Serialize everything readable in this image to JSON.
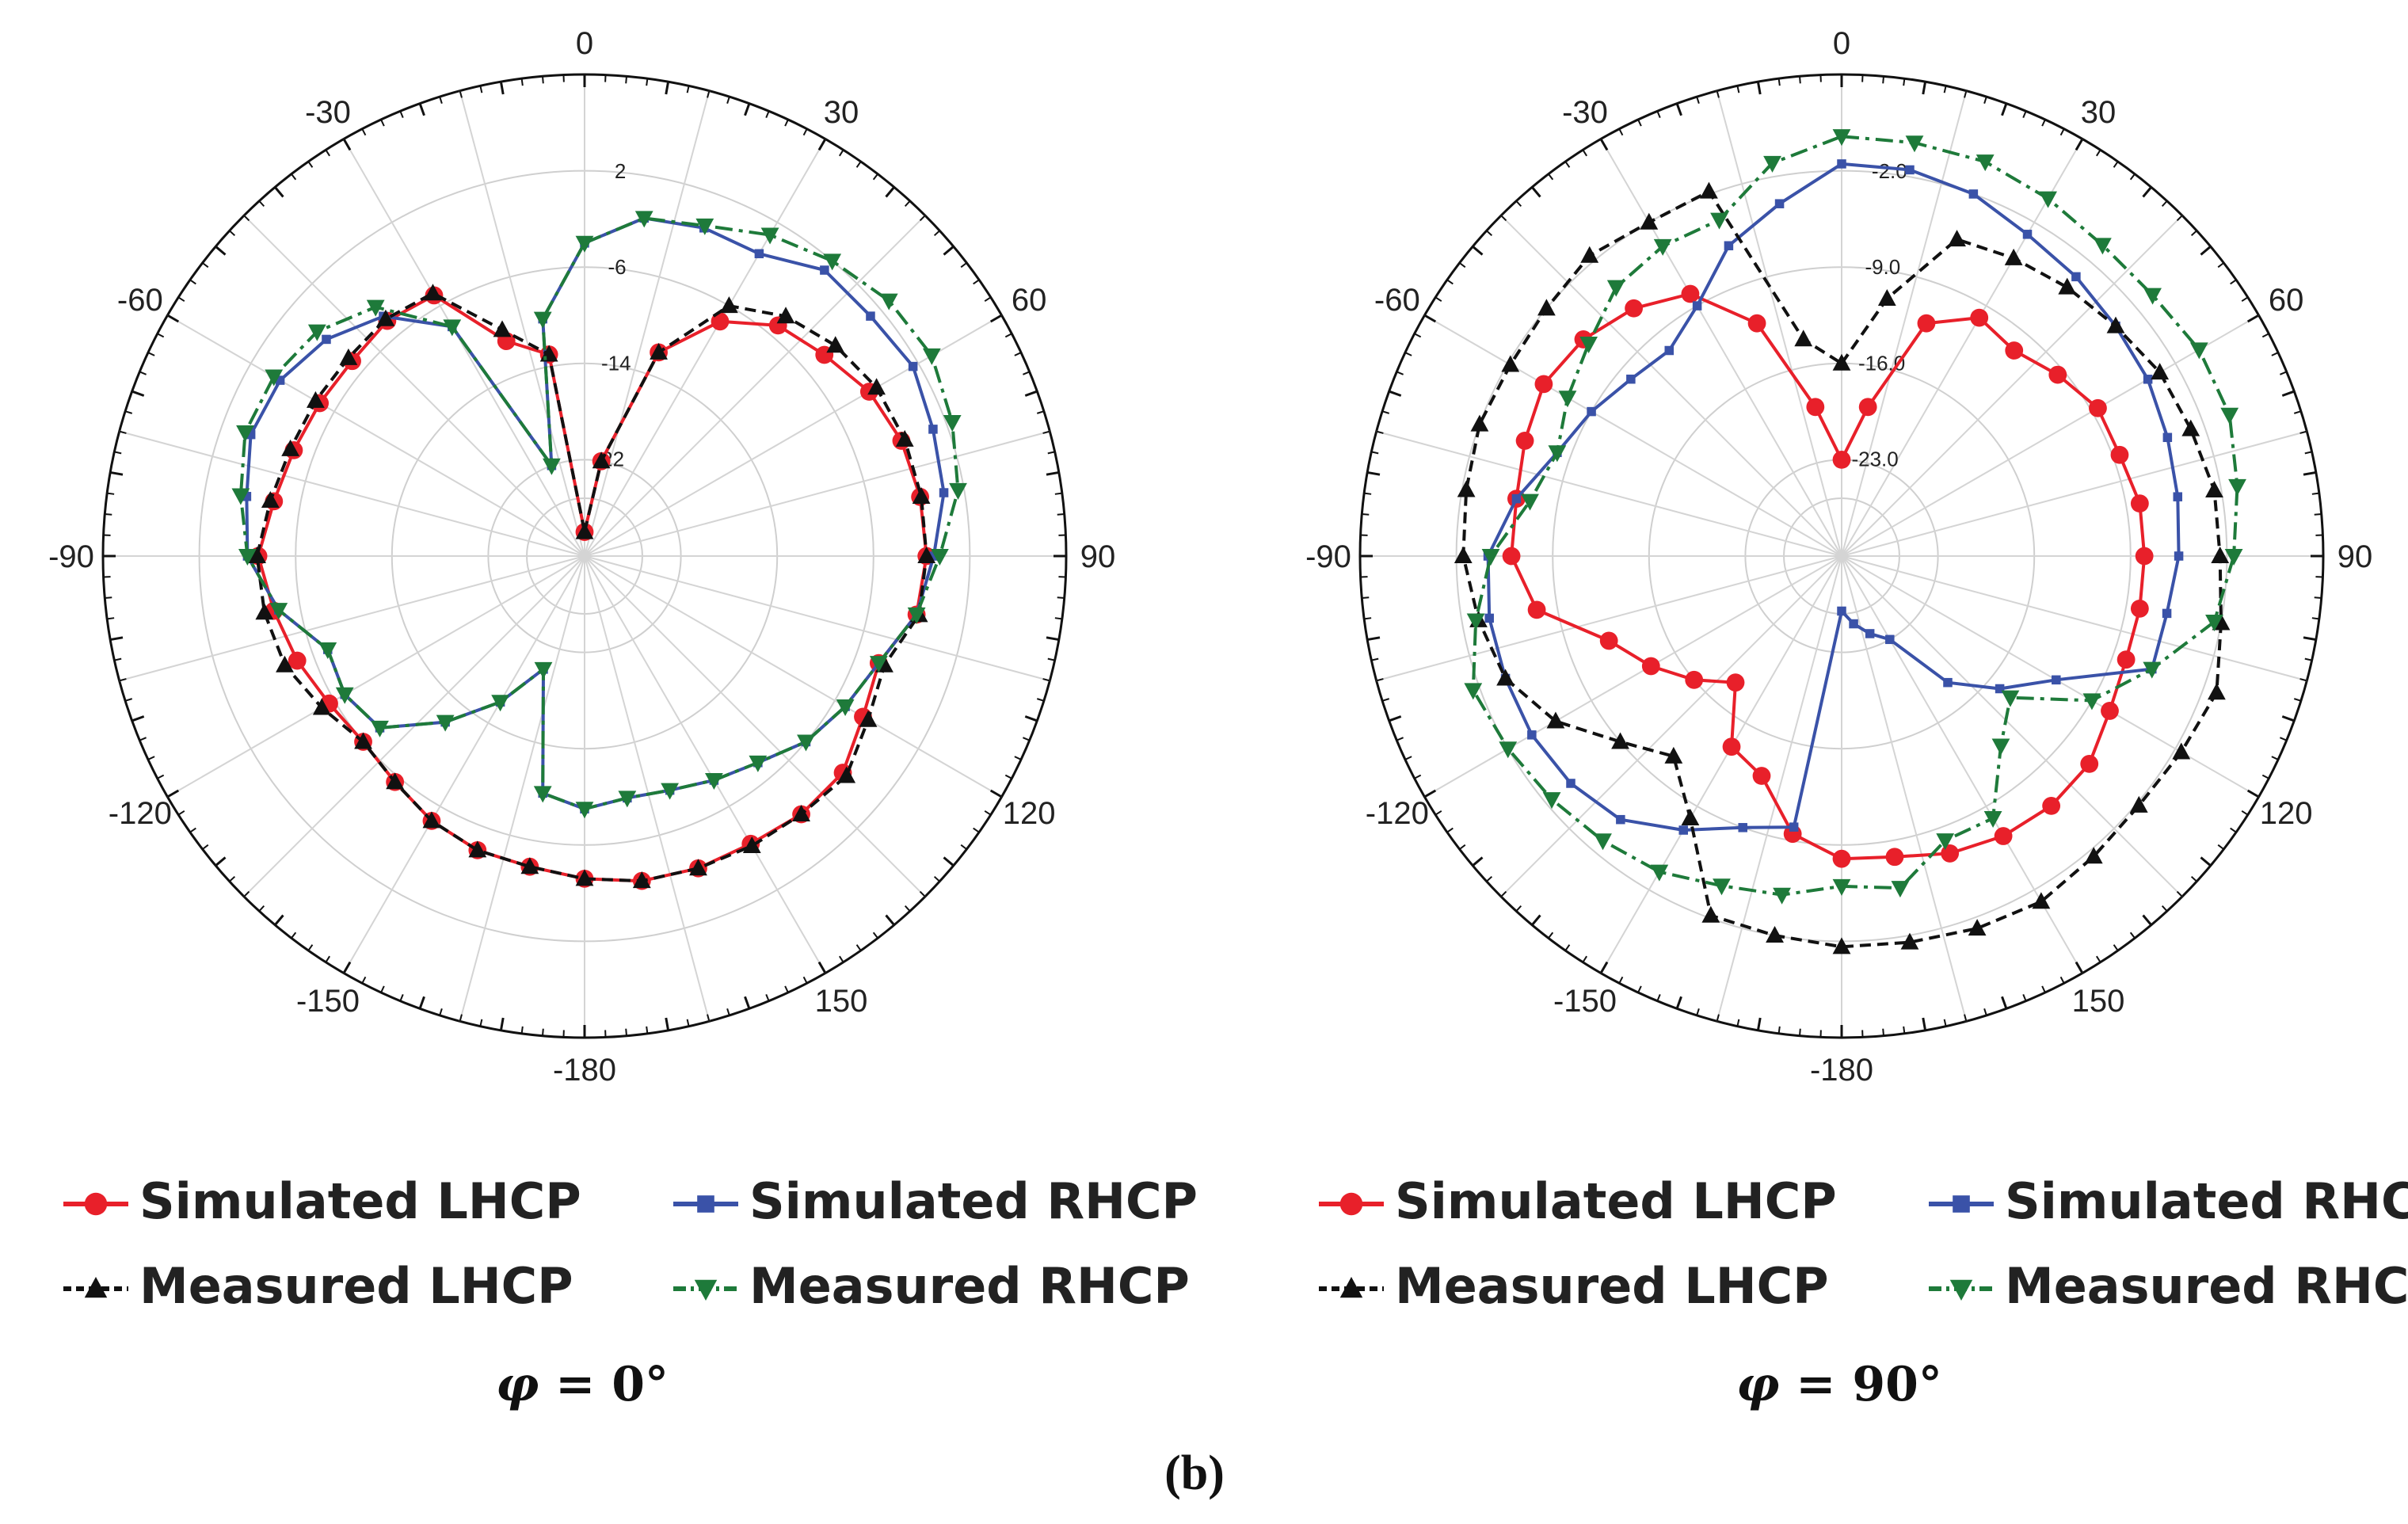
{
  "figure_caption": "(b)",
  "series_styles": {
    "sim_lhcp": {
      "color": "#e8202a",
      "dash": "",
      "marker": "circle"
    },
    "sim_rhcp": {
      "color": "#3a52a8",
      "dash": "",
      "marker": "square"
    },
    "meas_lhcp": {
      "color": "#111111",
      "dash": "14,8",
      "marker": "triangle-up"
    },
    "meas_rhcp": {
      "color": "#1e7a3a",
      "dash": "22,8,5,8",
      "marker": "triangle-down"
    }
  },
  "chart_data": [
    {
      "type": "polar",
      "title": "φ = 0°",
      "title_parts": {
        "symbol": "φ",
        "rest": " = 0°"
      },
      "angle_labels": [
        "0",
        "30",
        "60",
        "90",
        "120",
        "150",
        "-180",
        "-150",
        "-120",
        "-90",
        "-60",
        "-30"
      ],
      "angle_label_values": [
        0,
        30,
        60,
        90,
        120,
        150,
        180,
        210,
        240,
        270,
        300,
        330
      ],
      "radial_labels": [
        "2",
        "-6",
        "-14",
        "-22"
      ],
      "radial_label_values": [
        2,
        -6,
        -14,
        -22
      ],
      "r_range": [
        -30,
        10
      ],
      "angle_step": 10,
      "legend": [
        {
          "key": "sim_lhcp",
          "label": "Simulated LHCP"
        },
        {
          "key": "sim_rhcp",
          "label": "Simulated RHCP"
        },
        {
          "key": "meas_lhcp",
          "label": "Measured LHCP"
        },
        {
          "key": "meas_rhcp",
          "label": "Measured RHCP"
        }
      ],
      "series": [
        {
          "key": "sim_lhcp",
          "name": "Simulated LHCP",
          "angles": [
            0,
            10,
            20,
            30,
            40,
            50,
            60,
            70,
            80,
            90,
            100,
            110,
            120,
            130,
            140,
            150,
            160,
            170,
            180,
            190,
            200,
            210,
            220,
            230,
            240,
            250,
            260,
            270,
            280,
            290,
            300,
            310,
            320,
            330,
            340,
            350
          ],
          "values": [
            -28,
            -22,
            -12,
            -7.5,
            -5,
            -4,
            -2.7,
            -2,
            -1.7,
            -1.6,
            -2,
            -4,
            -3.3,
            -2,
            -2,
            -2.4,
            -2.4,
            -2.6,
            -3.2,
            -3.8,
            -4,
            -4.6,
            -5.5,
            -6,
            -5.5,
            -4.6,
            -3.8,
            -2.9,
            -3.8,
            -4.3,
            -4.6,
            -4.8,
            -4.5,
            -5,
            -11,
            -13
          ]
        },
        {
          "key": "sim_rhcp",
          "name": "Simulated RHCP",
          "angles": [
            0,
            10,
            20,
            30,
            40,
            50,
            60,
            70,
            80,
            90,
            100,
            110,
            120,
            130,
            140,
            150,
            160,
            170,
            180,
            190,
            200,
            210,
            220,
            230,
            240,
            250,
            260,
            270,
            280,
            290,
            300,
            310,
            320,
            330,
            340,
            350
          ],
          "values": [
            -4,
            -1.5,
            -1,
            -1,
            1,
            1,
            1.5,
            0.8,
            0.3,
            -1,
            -2,
            -4,
            -5,
            -6,
            -7.6,
            -8.5,
            -9.3,
            -9.6,
            -9,
            -10,
            -20,
            -16,
            -12,
            -7.8,
            -7,
            -7.3,
            -4.2,
            -2,
            -1.5,
            -0.5,
            -0.8,
            -2,
            -4,
            -8,
            -22,
            -10
          ]
        },
        {
          "key": "meas_lhcp",
          "name": "Measured LHCP",
          "angles": [
            0,
            10,
            20,
            30,
            40,
            50,
            60,
            70,
            80,
            90,
            100,
            110,
            120,
            130,
            140,
            150,
            160,
            170,
            180,
            190,
            200,
            210,
            220,
            230,
            240,
            250,
            260,
            270,
            280,
            290,
            300,
            310,
            320,
            330,
            340,
            350
          ],
          "values": [
            -28,
            -22,
            -12,
            -6,
            -4,
            -2.8,
            -2,
            -1.7,
            -1.6,
            -1.6,
            -1.8,
            -3.5,
            -2.8,
            -1.6,
            -2,
            -2.2,
            -2.4,
            -2.6,
            -3.2,
            -3.8,
            -4,
            -4.6,
            -5.5,
            -6,
            -4.8,
            -3.5,
            -3,
            -2.8,
            -3.5,
            -4,
            -4.2,
            -4.4,
            -4.3,
            -4.8,
            -10,
            -13
          ]
        },
        {
          "key": "meas_rhcp",
          "name": "Measured RHCP",
          "angles": [
            0,
            10,
            20,
            30,
            40,
            50,
            60,
            70,
            80,
            90,
            100,
            110,
            120,
            130,
            140,
            150,
            160,
            170,
            180,
            190,
            200,
            210,
            220,
            230,
            240,
            250,
            260,
            270,
            280,
            290,
            300,
            310,
            320,
            330,
            340,
            350
          ],
          "values": [
            -4,
            -1.5,
            -0.8,
            0.8,
            2,
            3,
            3.3,
            2.5,
            1.5,
            -0.5,
            -2,
            -4,
            -5,
            -6,
            -7.6,
            -8.5,
            -9.3,
            -9.6,
            -9,
            -10,
            -20,
            -16,
            -12,
            -7.8,
            -7,
            -7.3,
            -4.2,
            -2,
            -1,
            0,
            -0.2,
            -1,
            -3,
            -8,
            -22,
            -10
          ]
        }
      ]
    },
    {
      "type": "polar",
      "title": "φ = 90°",
      "title_parts": {
        "symbol": "φ",
        "rest": " = 90°"
      },
      "angle_labels": [
        "0",
        "30",
        "60",
        "90",
        "120",
        "150",
        "-180",
        "-150",
        "-120",
        "-90",
        "-60",
        "-30"
      ],
      "angle_label_values": [
        0,
        30,
        60,
        90,
        120,
        150,
        180,
        210,
        240,
        270,
        300,
        330
      ],
      "radial_labels": [
        "-2.0",
        "-9.0",
        "-16.0",
        "-23.0"
      ],
      "radial_label_values": [
        -2,
        -9,
        -16,
        -23
      ],
      "r_range": [
        -30,
        5
      ],
      "angle_step": 10,
      "legend": [
        {
          "key": "sim_lhcp",
          "label": "Simulated LHCP"
        },
        {
          "key": "sim_rhcp",
          "label": "Simulated RHCP"
        },
        {
          "key": "meas_lhcp",
          "label": "Measured LHCP"
        },
        {
          "key": "meas_rhcp",
          "label": "Measured RHCP"
        }
      ],
      "series": [
        {
          "key": "sim_lhcp",
          "name": "Simulated LHCP",
          "angles": [
            0,
            10,
            20,
            30,
            40,
            50,
            60,
            70,
            80,
            90,
            100,
            110,
            120,
            130,
            140,
            150,
            160,
            170,
            180,
            190,
            200,
            210,
            220,
            230,
            240,
            250,
            260,
            270,
            280,
            290,
            300,
            310,
            320,
            330,
            340,
            350
          ],
          "values": [
            -23,
            -19,
            -12,
            -10,
            -10.5,
            -9.5,
            -8.5,
            -8.5,
            -8,
            -8,
            -8,
            -8,
            -7.5,
            -6.5,
            -6.3,
            -6.5,
            -7,
            -7.8,
            -8,
            -9.5,
            -13,
            -14,
            -18,
            -16,
            -14,
            -12,
            -7.5,
            -6,
            -6,
            -5.5,
            -5,
            -5.5,
            -6.5,
            -8,
            -12,
            -19
          ]
        },
        {
          "key": "sim_rhcp",
          "name": "Simulated RHCP",
          "angles": [
            0,
            10,
            20,
            30,
            40,
            50,
            60,
            70,
            80,
            90,
            100,
            110,
            120,
            130,
            140,
            150,
            160,
            170,
            180,
            190,
            200,
            210,
            220,
            230,
            240,
            250,
            260,
            270,
            280,
            290,
            300,
            310,
            320,
            330,
            340,
            350
          ],
          "values": [
            -1.5,
            -1.5,
            -2,
            -3,
            -3.5,
            -4,
            -4.3,
            -4.8,
            -5.2,
            -5.5,
            -6,
            -6,
            -12,
            -15,
            -18,
            -23,
            -24,
            -25,
            -26,
            -10,
            -9,
            -7,
            -5,
            -4.3,
            -4,
            -4,
            -4,
            -4.3,
            -6,
            -8,
            -9,
            -10,
            -10.5,
            -9,
            -6,
            -4
          ]
        },
        {
          "key": "meas_lhcp",
          "name": "Measured LHCP",
          "angles": [
            0,
            10,
            20,
            30,
            40,
            50,
            60,
            70,
            80,
            90,
            100,
            110,
            120,
            130,
            140,
            150,
            160,
            170,
            180,
            190,
            200,
            210,
            220,
            230,
            240,
            250,
            260,
            270,
            280,
            290,
            300,
            310,
            320,
            330,
            340,
            350
          ],
          "values": [
            -16,
            -11,
            -5.5,
            -5,
            -4.5,
            -4,
            -3.3,
            -3,
            -2.5,
            -2.5,
            -2,
            -1,
            -1.5,
            -1.8,
            -1.5,
            -1,
            -1.2,
            -1.5,
            -1.6,
            -2,
            -2.2,
            -8,
            -11,
            -9,
            -6,
            -4,
            -3.2,
            -2.5,
            -2.3,
            -2,
            -2.2,
            -2,
            -1.5,
            -2,
            -1.8,
            -14
          ]
        },
        {
          "key": "meas_rhcp",
          "name": "Measured RHCP",
          "angles": [
            0,
            10,
            20,
            30,
            40,
            50,
            60,
            70,
            80,
            90,
            100,
            110,
            120,
            130,
            140,
            150,
            160,
            170,
            180,
            190,
            200,
            210,
            220,
            230,
            240,
            250,
            260,
            270,
            280,
            290,
            300,
            310,
            320,
            330,
            340,
            350
          ],
          "values": [
            0.5,
            0.5,
            0.5,
            0,
            -0.5,
            -0.5,
            0,
            0,
            -0.8,
            -1.5,
            -2.5,
            -6,
            -9,
            -14,
            -12,
            -8,
            -8,
            -5.5,
            -6,
            -5,
            -4.5,
            -3.5,
            -3,
            -2.5,
            -2,
            -1.5,
            -3,
            -4.5,
            -7,
            -8,
            -7,
            -6,
            -4.5,
            -4,
            -4,
            -1
          ]
        }
      ]
    }
  ]
}
